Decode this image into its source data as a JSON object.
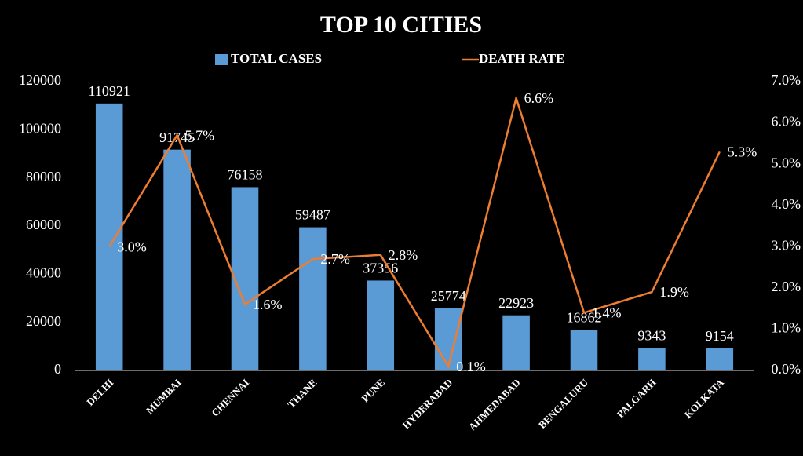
{
  "chart_data": {
    "type": "bar",
    "title": "TOP 10 CITIES",
    "legend": "top",
    "categories": [
      "DELHI",
      "MUMBAI",
      "CHENNAI",
      "THANE",
      "PUNE",
      "HYDERABAD",
      "AHMEDABAD",
      "BENGALURU",
      "PALGARH",
      "KOLKATA"
    ],
    "series": [
      {
        "name": "TOTAL CASES",
        "color": "#5b9bd5",
        "values": [
          110921,
          91745,
          76158,
          59487,
          37356,
          25774,
          22923,
          16862,
          9343,
          9154
        ]
      },
      {
        "name": "DEATH RATE",
        "type": "line",
        "axis": "y2",
        "color": "#ed7d31",
        "values": [
          3.0,
          5.7,
          1.6,
          2.7,
          2.8,
          0.1,
          6.6,
          1.4,
          1.9,
          5.3
        ],
        "value_labels": [
          "3.0%",
          "5.7%",
          "1.6%",
          "2.7%",
          "2.8%",
          "0.1%",
          "6.6%",
          "1.4%",
          "1.9%",
          "5.3%"
        ]
      }
    ],
    "ylim": [
      0,
      120000
    ],
    "yticks": [
      0,
      20000,
      40000,
      60000,
      80000,
      100000,
      120000
    ],
    "y2lim": [
      0,
      7
    ],
    "y2ticks": [
      {
        "value": 0,
        "label": "0.0%"
      },
      {
        "value": 1,
        "label": "1.0%"
      },
      {
        "value": 2,
        "label": "2.0%"
      },
      {
        "value": 3,
        "label": "3.0%"
      },
      {
        "value": 4,
        "label": "4.0%"
      },
      {
        "value": 5,
        "label": "5.0%"
      },
      {
        "value": 6,
        "label": "6.0%"
      },
      {
        "value": 7,
        "label": "7.0%"
      }
    ]
  }
}
